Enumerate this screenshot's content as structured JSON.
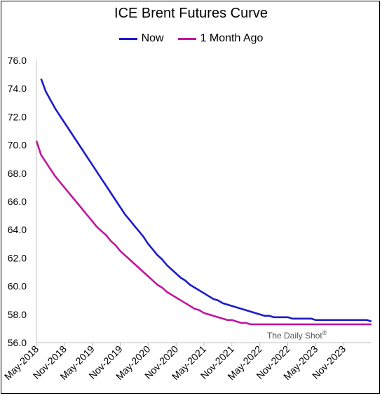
{
  "chart_data": {
    "type": "line",
    "title": "ICE Brent Futures Curve",
    "xlabel": "",
    "ylabel": "",
    "ylim": [
      56.0,
      76.0
    ],
    "y_ticks": [
      "56.0",
      "58.0",
      "60.0",
      "62.0",
      "64.0",
      "66.0",
      "68.0",
      "70.0",
      "72.0",
      "74.0",
      "76.0"
    ],
    "x_ticks": [
      "May-2018",
      "Nov-2018",
      "May-2019",
      "Nov-2019",
      "May-2020",
      "Nov-2020",
      "May-2021",
      "Nov-2021",
      "May-2022",
      "Nov-2022",
      "May-2023",
      "Nov-2023"
    ],
    "x_range_months": [
      0,
      72
    ],
    "legend_position": "top-center",
    "watermark": "The Daily Shot",
    "watermark_mark": "®",
    "series": [
      {
        "name": "Now",
        "color": "#1c1cc8",
        "x": [
          1,
          2,
          3,
          4,
          5,
          6,
          7,
          8,
          9,
          10,
          11,
          12,
          13,
          14,
          15,
          16,
          17,
          18,
          19,
          20,
          21,
          22,
          23,
          24,
          25,
          26,
          27,
          28,
          29,
          30,
          31,
          32,
          33,
          34,
          35,
          36,
          37,
          38,
          39,
          40,
          41,
          42,
          43,
          44,
          45,
          46,
          47,
          48,
          49,
          50,
          51,
          52,
          53,
          54,
          55,
          56,
          57,
          58,
          59,
          60,
          61,
          62,
          63,
          64,
          65,
          66,
          67,
          68,
          69,
          70,
          71,
          72
        ],
        "y": [
          74.7,
          73.8,
          73.2,
          72.6,
          72.1,
          71.6,
          71.1,
          70.6,
          70.1,
          69.6,
          69.1,
          68.6,
          68.1,
          67.6,
          67.1,
          66.6,
          66.1,
          65.6,
          65.1,
          64.7,
          64.3,
          63.9,
          63.5,
          63.0,
          62.6,
          62.2,
          61.9,
          61.5,
          61.2,
          60.9,
          60.6,
          60.4,
          60.1,
          59.9,
          59.7,
          59.5,
          59.3,
          59.1,
          59.0,
          58.8,
          58.7,
          58.6,
          58.5,
          58.4,
          58.3,
          58.2,
          58.1,
          58.0,
          57.9,
          57.9,
          57.8,
          57.8,
          57.8,
          57.8,
          57.7,
          57.7,
          57.7,
          57.7,
          57.7,
          57.6,
          57.6,
          57.6,
          57.6,
          57.6,
          57.6,
          57.6,
          57.6,
          57.6,
          57.6,
          57.6,
          57.6,
          57.5
        ]
      },
      {
        "name": "1 Month Ago",
        "color": "#c0169c",
        "x": [
          0,
          1,
          2,
          3,
          4,
          5,
          6,
          7,
          8,
          9,
          10,
          11,
          12,
          13,
          14,
          15,
          16,
          17,
          18,
          19,
          20,
          21,
          22,
          23,
          24,
          25,
          26,
          27,
          28,
          29,
          30,
          31,
          32,
          33,
          34,
          35,
          36,
          37,
          38,
          39,
          40,
          41,
          42,
          43,
          44,
          45,
          46,
          47,
          48,
          49,
          50,
          51,
          52,
          53,
          54,
          55,
          56,
          57,
          58,
          59,
          60,
          61,
          62,
          63,
          64,
          65,
          66,
          67,
          68,
          69,
          70,
          71,
          72
        ],
        "y": [
          70.3,
          69.3,
          68.8,
          68.3,
          67.8,
          67.4,
          67.0,
          66.6,
          66.2,
          65.8,
          65.4,
          65.0,
          64.6,
          64.2,
          63.9,
          63.6,
          63.2,
          62.9,
          62.5,
          62.2,
          61.9,
          61.6,
          61.3,
          61.0,
          60.7,
          60.4,
          60.1,
          59.9,
          59.6,
          59.4,
          59.2,
          59.0,
          58.8,
          58.6,
          58.4,
          58.3,
          58.1,
          58.0,
          57.9,
          57.8,
          57.7,
          57.6,
          57.6,
          57.5,
          57.4,
          57.4,
          57.3,
          57.3,
          57.3,
          57.3,
          57.3,
          57.3,
          57.3,
          57.3,
          57.3,
          57.3,
          57.3,
          57.3,
          57.3,
          57.3,
          57.3,
          57.3,
          57.3,
          57.3,
          57.3,
          57.3,
          57.3,
          57.3,
          57.3,
          57.3,
          57.3,
          57.3,
          57.3
        ]
      }
    ]
  }
}
